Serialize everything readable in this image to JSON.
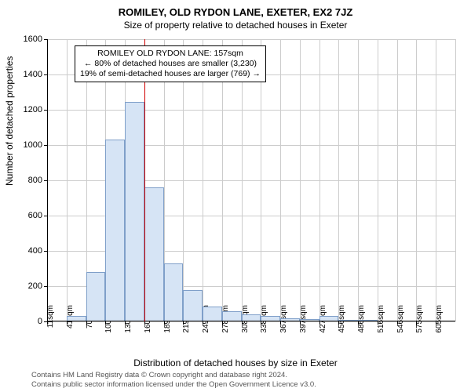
{
  "chart": {
    "type": "histogram",
    "title": "ROMILEY, OLD RYDON LANE, EXETER, EX2 7JZ",
    "subtitle": "Size of property relative to detached houses in Exeter",
    "y_axis_label": "Number of detached properties",
    "x_axis_label": "Distribution of detached houses by size in Exeter",
    "ylim": [
      0,
      1600
    ],
    "y_ticks": [
      0,
      200,
      400,
      600,
      800,
      1000,
      1200,
      1400,
      1600
    ],
    "x_categories": [
      "11sqm",
      "41sqm",
      "70sqm",
      "100sqm",
      "130sqm",
      "160sqm",
      "189sqm",
      "219sqm",
      "249sqm",
      "278sqm",
      "308sqm",
      "338sqm",
      "367sqm",
      "397sqm",
      "427sqm",
      "456sqm",
      "486sqm",
      "516sqm",
      "546sqm",
      "575sqm",
      "605sqm"
    ],
    "values": [
      0,
      30,
      280,
      1030,
      1245,
      760,
      330,
      180,
      85,
      60,
      40,
      30,
      20,
      15,
      30,
      10,
      10,
      5,
      0,
      0,
      0
    ],
    "bar_fill": "#d6e4f5",
    "bar_stroke": "#7f9fc9",
    "bar_width_ratio": 1.0,
    "background_color": "#ffffff",
    "grid_color": "#cccccc",
    "axis_color": "#000000",
    "reference_line": {
      "position_index": 5,
      "color": "#d00000"
    },
    "annotation": {
      "line1": "ROMILEY OLD RYDON LANE: 157sqm",
      "line2": "← 80% of detached houses are smaller (3,230)",
      "line3": "19% of semi-detached houses are larger (769) →",
      "border_color": "#000000"
    },
    "footer": {
      "line1": "Contains HM Land Registry data © Crown copyright and database right 2024.",
      "line2": "Contains public sector information licensed under the Open Government Licence v3.0."
    },
    "title_fontsize": 13,
    "subtitle_fontsize": 12,
    "label_fontsize": 12,
    "tick_fontsize": 11,
    "annotation_fontsize": 10.5,
    "footer_fontsize": 9.5
  }
}
